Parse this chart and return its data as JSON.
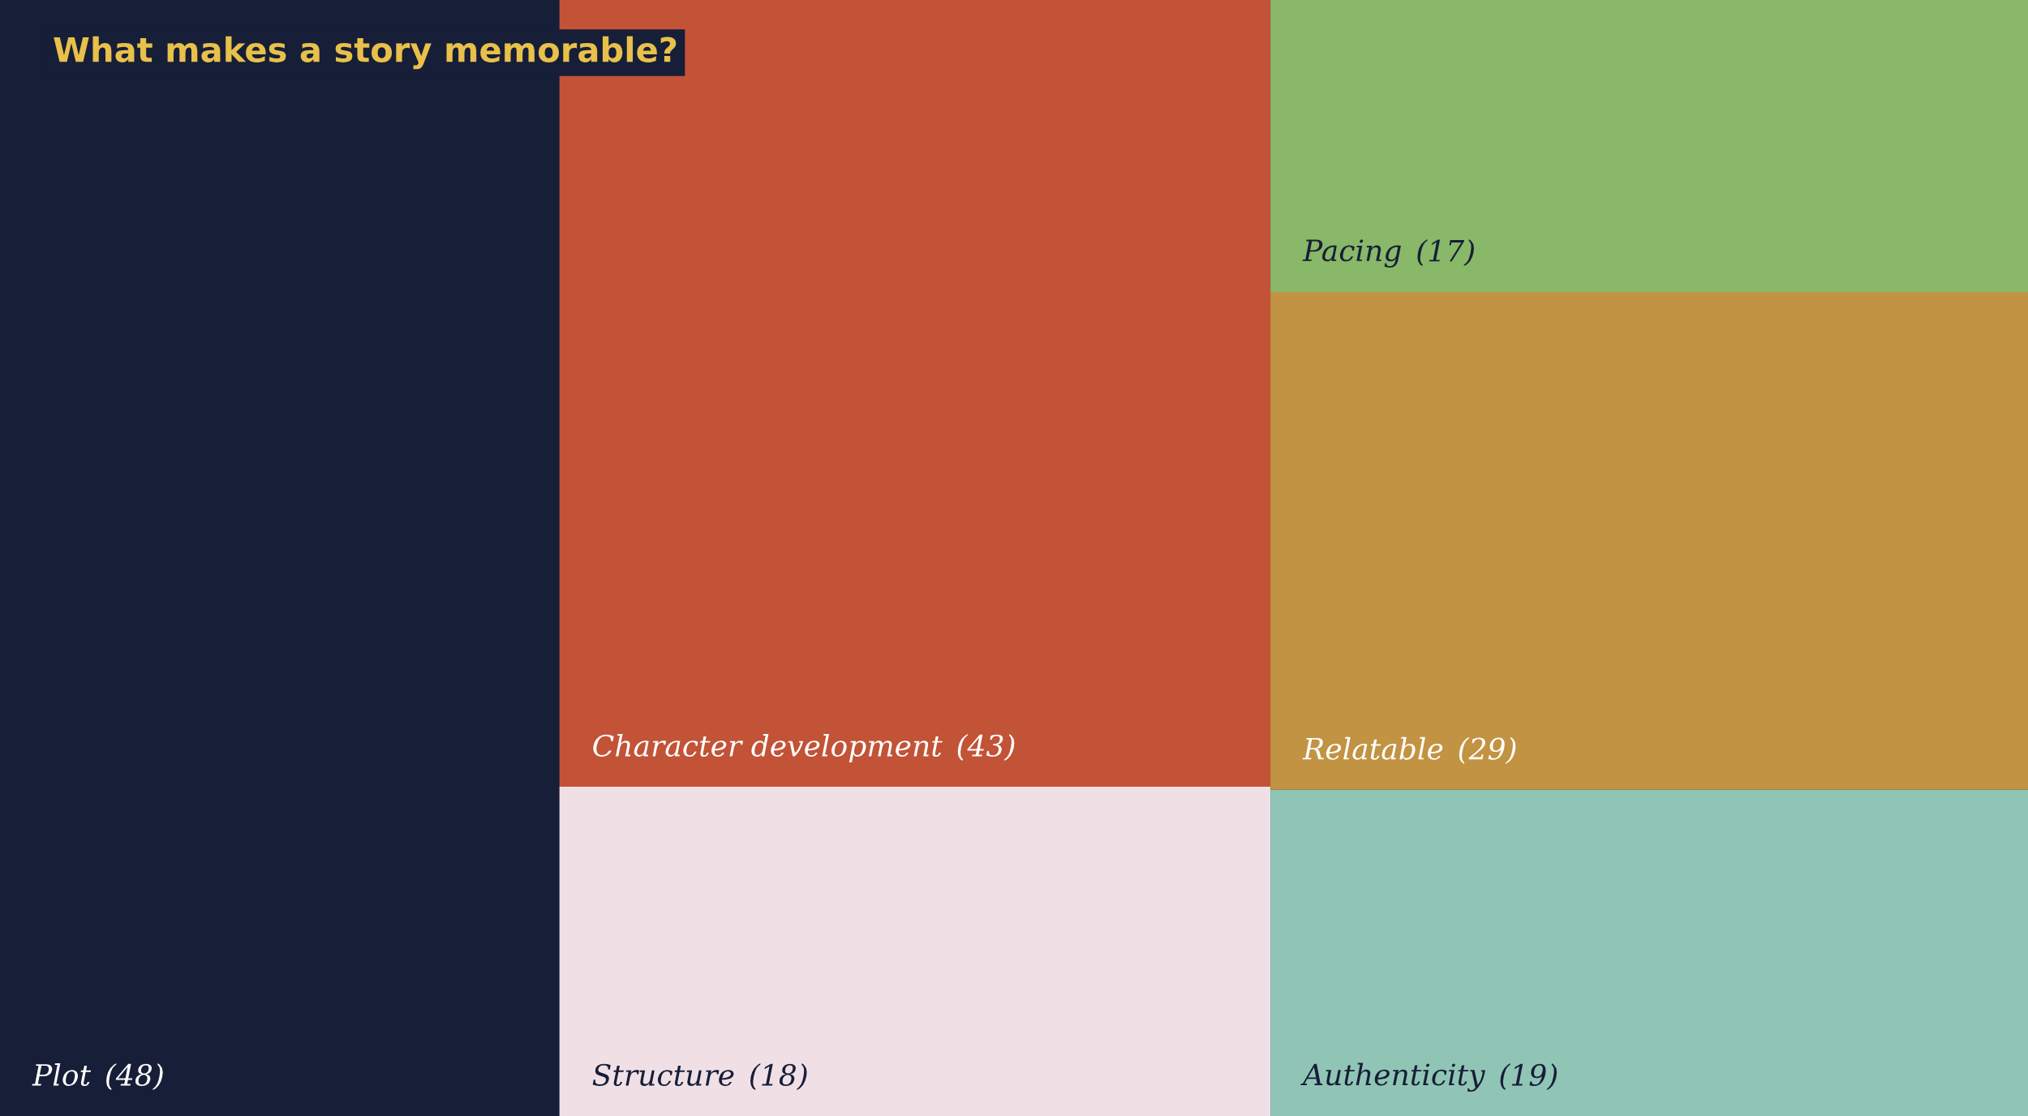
{
  "chart_data": {
    "type": "other",
    "title": "What makes a story memorable?",
    "categories": [
      "Plot",
      "Character development",
      "Structure",
      "Pacing",
      "Relatable",
      "Authenticity"
    ],
    "values": [
      48,
      43,
      18,
      17,
      29,
      19
    ],
    "value_labels": [
      "(48)",
      "(43)",
      "(18)",
      "(17)",
      "(29)",
      "(19)"
    ],
    "colors": [
      "#171e38",
      "#c25337",
      "#f0e0e6",
      "#88b868",
      "#c29342",
      "#90c5b6"
    ]
  }
}
